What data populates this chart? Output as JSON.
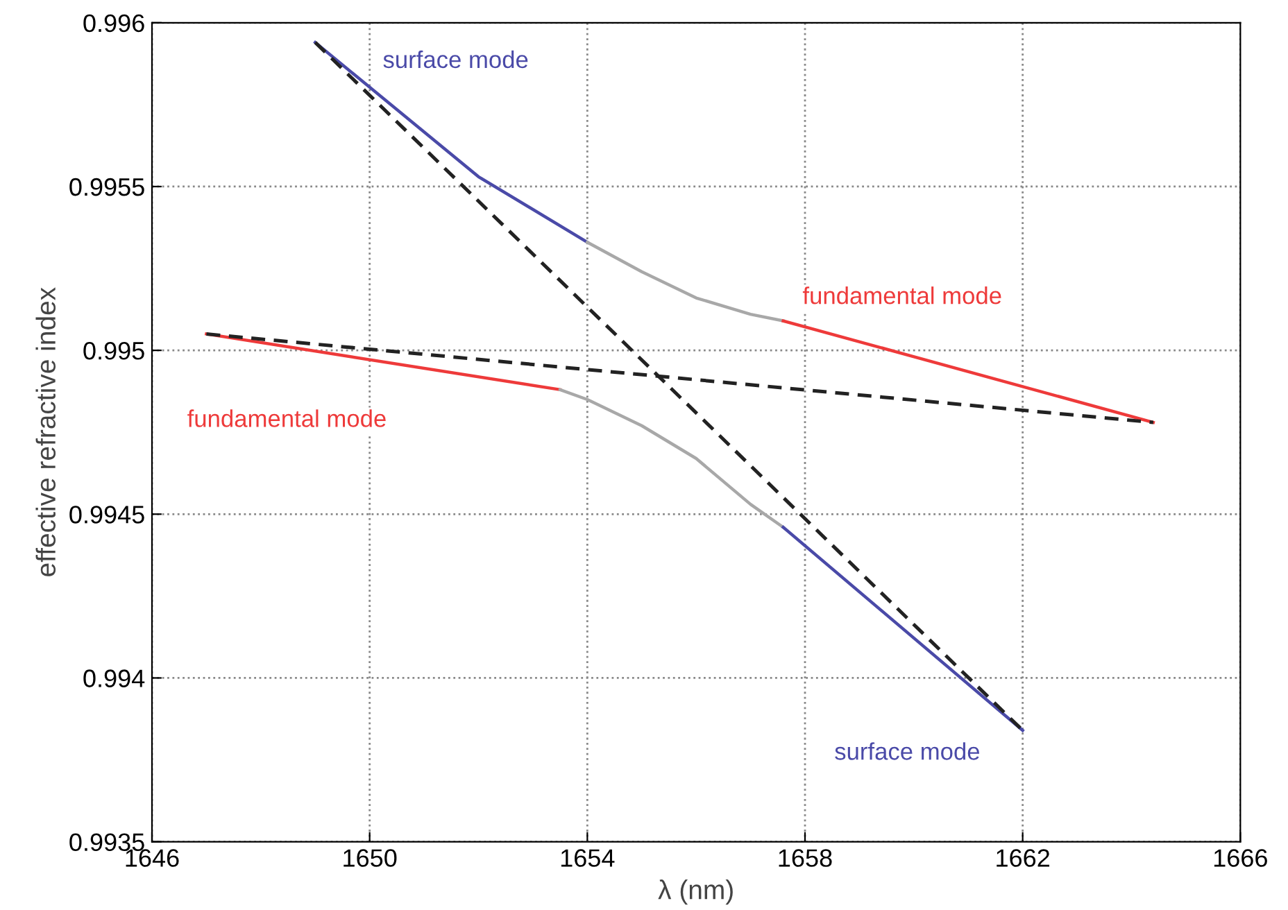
{
  "chart_data": {
    "type": "line",
    "xlabel": "λ (nm)",
    "ylabel": "effective refractive index",
    "xlim": [
      1646,
      1666
    ],
    "xticks": [
      1646,
      1650,
      1654,
      1658,
      1662,
      1666
    ],
    "ylim": [
      0.9935,
      0.996
    ],
    "yticks": [
      0.9935,
      0.994,
      0.9945,
      0.995,
      0.9955,
      0.996
    ],
    "grid": true,
    "marker": "none",
    "series": [
      {
        "name": "surface mode",
        "color": "#4a4aa8",
        "x": [
          1649,
          1652,
          1654
        ],
        "values": [
          0.99594,
          0.99553,
          0.99533
        ]
      },
      {
        "color": "#a8a8a8",
        "x": [
          1654,
          1655,
          1656,
          1657,
          1657.6
        ],
        "values": [
          0.99533,
          0.99524,
          0.99516,
          0.99511,
          0.99509
        ]
      },
      {
        "name": "fundamental mode",
        "color": "#ee3a3a",
        "x": [
          1657.6,
          1664.4
        ],
        "values": [
          0.99509,
          0.99478
        ]
      },
      {
        "name": "fundamental mode",
        "color": "#ee3a3a",
        "x": [
          1647,
          1653.5
        ],
        "values": [
          0.99505,
          0.99488
        ]
      },
      {
        "color": "#a8a8a8",
        "x": [
          1653.5,
          1654,
          1655,
          1656,
          1657,
          1657.6
        ],
        "values": [
          0.99488,
          0.99485,
          0.99477,
          0.99467,
          0.99453,
          0.99446
        ]
      },
      {
        "name": "surface mode",
        "color": "#4a4aa8",
        "x": [
          1657.6,
          1662
        ],
        "values": [
          0.99446,
          0.99384
        ]
      },
      {
        "color": "#222222",
        "line_style": "dashed",
        "x": [
          1647,
          1664.4
        ],
        "values": [
          0.99505,
          0.99478
        ]
      },
      {
        "color": "#222222",
        "line_style": "dashed",
        "x": [
          1649,
          1662
        ],
        "values": [
          0.99594,
          0.99384
        ]
      }
    ]
  }
}
